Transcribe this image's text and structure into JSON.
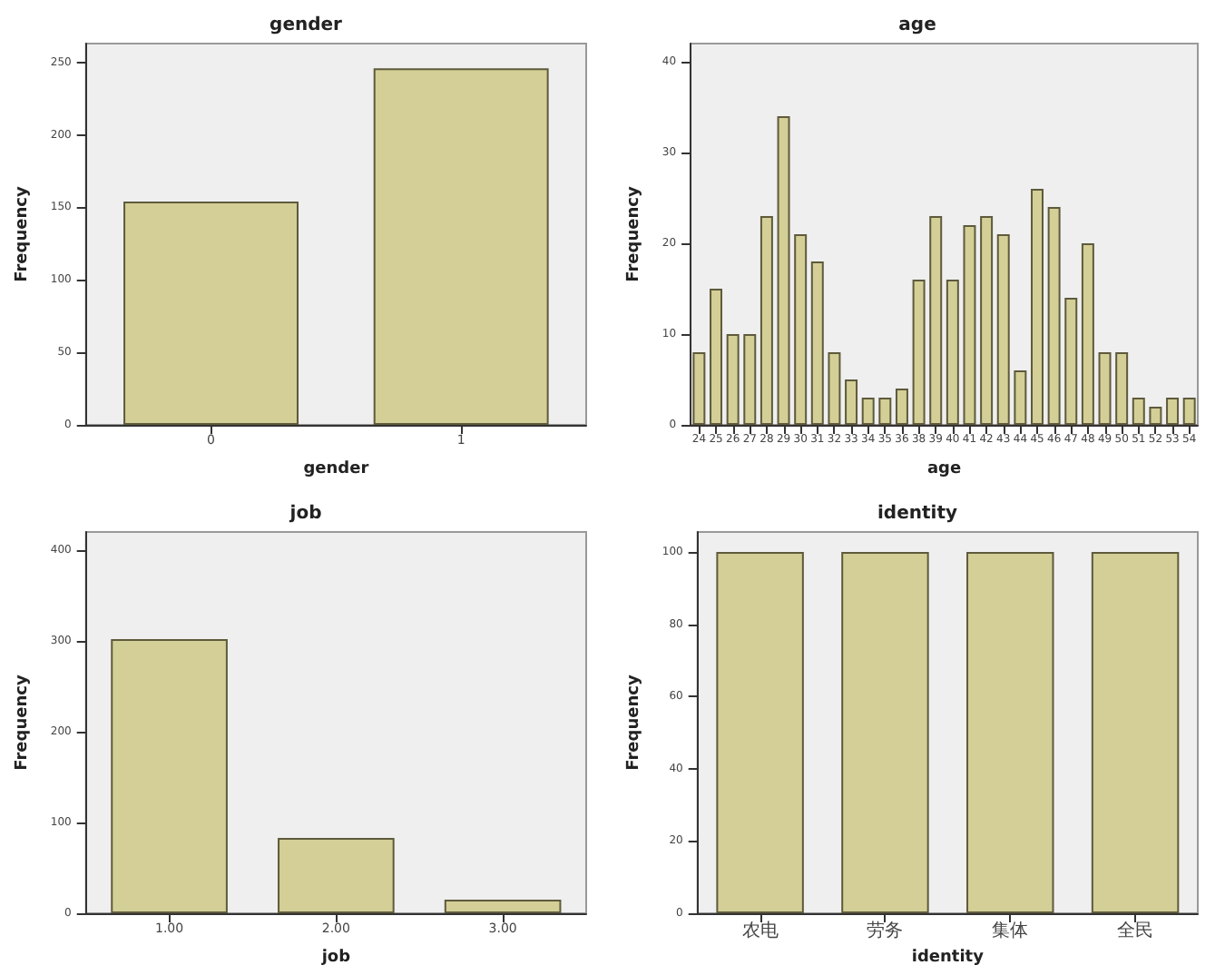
{
  "chart_data": [
    {
      "type": "bar",
      "title": "gender",
      "xlabel": "gender",
      "ylabel": "Frequency",
      "categories": [
        "0",
        "1"
      ],
      "values": [
        154,
        246
      ],
      "color": "#d3cf96",
      "ylim": [
        0,
        263
      ],
      "yticks": [
        0,
        50,
        100,
        150,
        200,
        250
      ]
    },
    {
      "type": "bar",
      "title": "age",
      "xlabel": "age",
      "ylabel": "Frequency",
      "categories": [
        "24",
        "25",
        "26",
        "27",
        "28",
        "29",
        "30",
        "31",
        "32",
        "33",
        "34",
        "35",
        "36",
        "38",
        "39",
        "40",
        "41",
        "42",
        "43",
        "44",
        "45",
        "46",
        "47",
        "48",
        "49",
        "50",
        "51",
        "52",
        "53",
        "54"
      ],
      "values": [
        8,
        15,
        10,
        10,
        23,
        34,
        21,
        18,
        8,
        5,
        3,
        3,
        4,
        16,
        23,
        16,
        22,
        23,
        21,
        6,
        26,
        24,
        14,
        20,
        8,
        8,
        3,
        2,
        3,
        3
      ],
      "color": "#d3cf96",
      "ylim": [
        0,
        42
      ],
      "yticks": [
        0,
        10,
        20,
        30,
        40
      ]
    },
    {
      "type": "bar",
      "title": "job",
      "xlabel": "job",
      "ylabel": "Frequency",
      "categories": [
        "1.00",
        "2.00",
        "3.00"
      ],
      "values": [
        302,
        83,
        15
      ],
      "color": "#d3cf96",
      "ylim": [
        0,
        420
      ],
      "yticks": [
        0,
        100,
        200,
        300,
        400
      ]
    },
    {
      "type": "bar",
      "title": "identity",
      "xlabel": "identity",
      "ylabel": "Frequency",
      "categories": [
        "农电",
        "劳务",
        "集体",
        "全民"
      ],
      "values": [
        100,
        100,
        100,
        100
      ],
      "color": "#d3cf96",
      "ylim": [
        0,
        105.5
      ],
      "yticks": [
        0,
        20,
        40,
        60,
        80,
        100
      ]
    }
  ]
}
